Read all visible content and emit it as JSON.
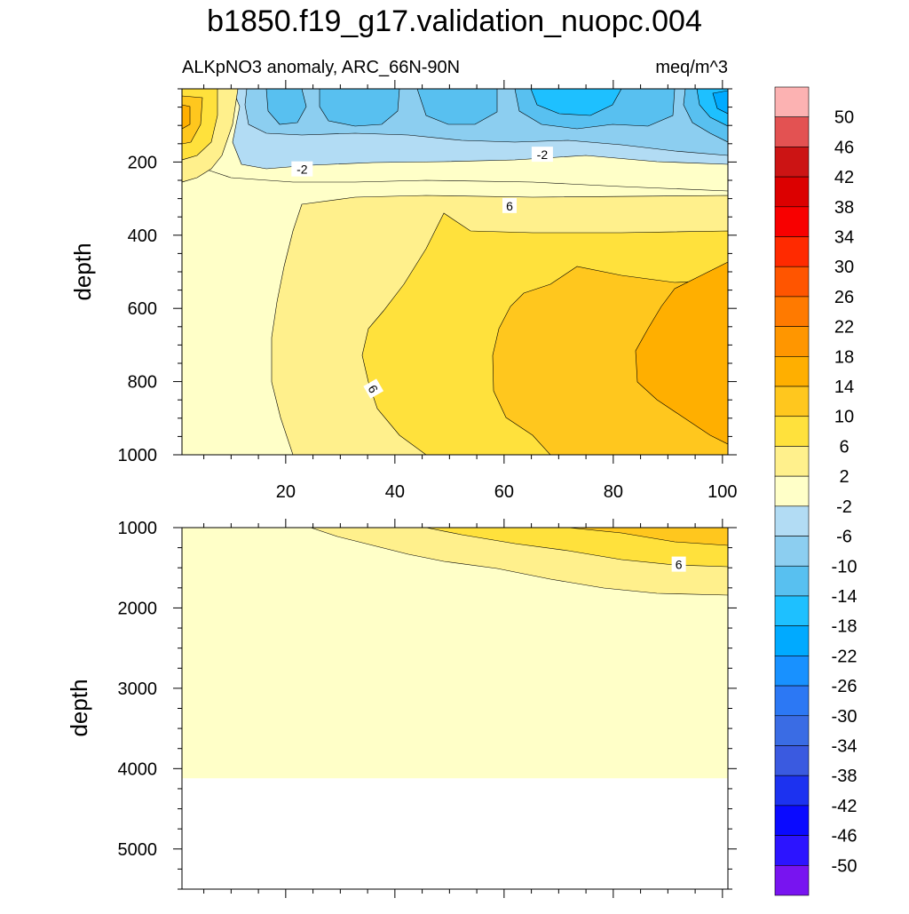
{
  "chart_data": {
    "type": "contour",
    "title": "b1850.f19_g17.validation_nuopc.004",
    "subtitle_left": "ALKpNO3 anomaly, ARC_66N-90N",
    "subtitle_right": "meq/m^3",
    "ylabel": "depth",
    "x_range": [
      1,
      101
    ],
    "x_ticks": [
      "20",
      "40",
      "60",
      "80",
      "100"
    ],
    "top_panel": {
      "ylim": [
        0,
        1000
      ],
      "y_ticks": [
        "200",
        "400",
        "600",
        "800",
        "1000"
      ]
    },
    "bottom_panel": {
      "ylim": [
        1000,
        5500
      ],
      "y_ticks": [
        "1000",
        "2000",
        "3000",
        "4000",
        "5000"
      ],
      "data_bottom_depth": 4120
    },
    "contour_labels": [
      {
        "text": "-2",
        "x": 23,
        "depth": 220
      },
      {
        "text": "-2",
        "x": 67,
        "depth": 180
      },
      {
        "text": "6",
        "x": 61,
        "depth": 320
      },
      {
        "text": "6",
        "x": 36,
        "depth": 820
      },
      {
        "text": "6",
        "x": 92,
        "depth": 1460
      }
    ],
    "colorbar": {
      "labels": [
        "50",
        "46",
        "42",
        "38",
        "34",
        "30",
        "26",
        "22",
        "18",
        "14",
        "10",
        "6",
        "2",
        "-2",
        "-6",
        "-10",
        "-14",
        "-18",
        "-22",
        "-26",
        "-30",
        "-34",
        "-38",
        "-42",
        "-46",
        "-50"
      ],
      "colors": [
        "#fcb2b2",
        "#e35252",
        "#cc1414",
        "#dc0000",
        "#f80000",
        "#ff2a00",
        "#ff5500",
        "#ff7a00",
        "#ff9600",
        "#ffaf00",
        "#ffc71e",
        "#ffe13c",
        "#fff08c",
        "#ffffc8",
        "#b2dcf4",
        "#8ccef0",
        "#58c0f0",
        "#1ec0ff",
        "#00aaff",
        "#1891ff",
        "#2c78f4",
        "#3a6ce4",
        "#3a5ae0",
        "#1c32f0",
        "#0a0aff",
        "#2c14ff",
        "#7814f0"
      ]
    },
    "fill_colors": {
      "m22": "#00aaff",
      "m18": "#1ec0ff",
      "m14": "#58c0f0",
      "m10": "#8ccef0",
      "m6": "#b2dcf4",
      "m2": "#ffffc8",
      "p2": "#fff08c",
      "p6": "#ffe13c",
      "p10": "#ffc71e",
      "p14": "#ffaf00"
    }
  }
}
